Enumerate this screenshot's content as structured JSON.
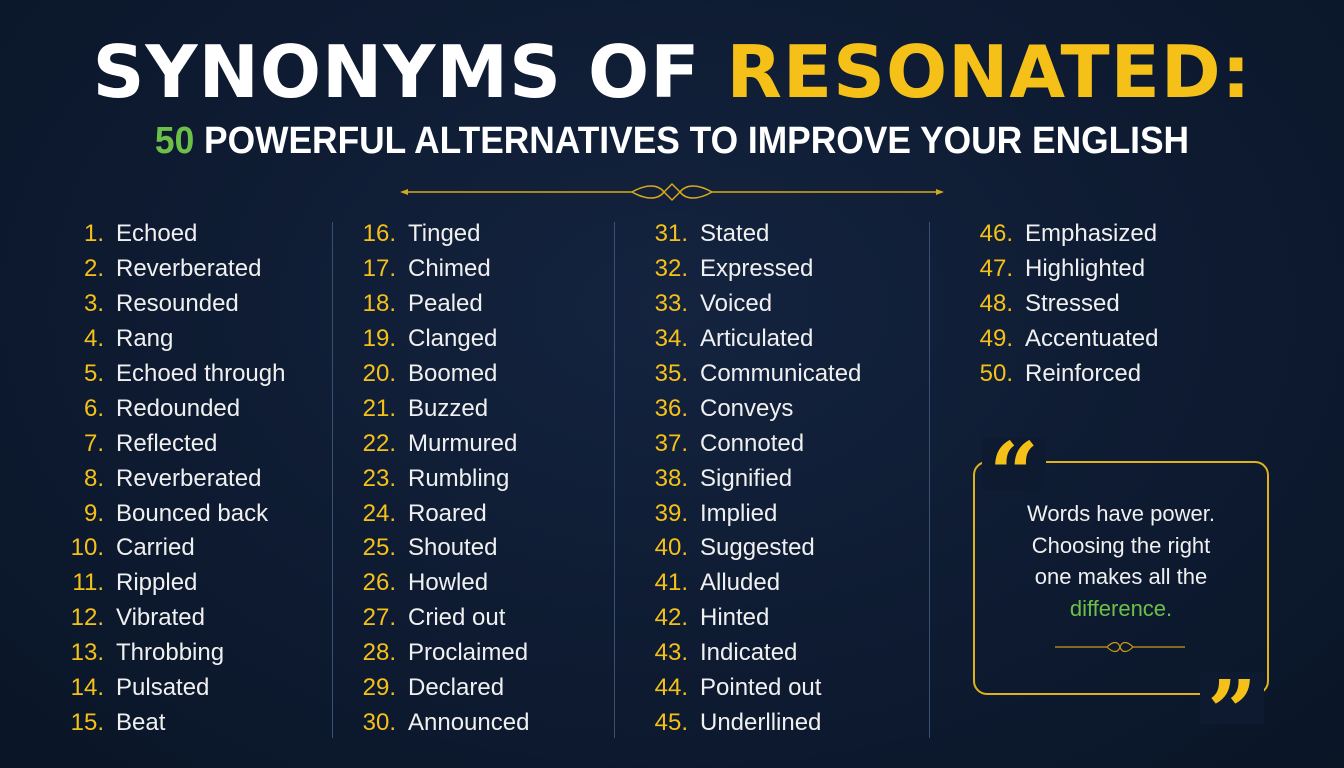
{
  "title": {
    "part1": "SYNONYMS OF ",
    "part2": "RESONATED:"
  },
  "subtitle": {
    "number": "50",
    "text": " POWERFUL ALTERNATIVES TO IMPROVE YOUR ENGLISH"
  },
  "columns": [
    [
      {
        "n": "1.",
        "w": "Echoed"
      },
      {
        "n": "2.",
        "w": "Reverberated"
      },
      {
        "n": "3.",
        "w": "Resounded"
      },
      {
        "n": "4.",
        "w": "Rang"
      },
      {
        "n": "5.",
        "w": "Echoed through"
      },
      {
        "n": "6.",
        "w": "Redounded"
      },
      {
        "n": "7.",
        "w": "Reflected"
      },
      {
        "n": "8.",
        "w": "Reverberated"
      },
      {
        "n": "9.",
        "w": "Bounced back"
      },
      {
        "n": "10.",
        "w": "Carried"
      },
      {
        "n": "11.",
        "w": "Rippled"
      },
      {
        "n": "12.",
        "w": "Vibrated"
      },
      {
        "n": "13.",
        "w": "Throbbing"
      },
      {
        "n": "14.",
        "w": "Pulsated"
      },
      {
        "n": "15.",
        "w": "Beat"
      }
    ],
    [
      {
        "n": "16.",
        "w": "Tinged"
      },
      {
        "n": "17.",
        "w": "Chimed"
      },
      {
        "n": "18.",
        "w": "Pealed"
      },
      {
        "n": "19.",
        "w": "Clanged"
      },
      {
        "n": "20.",
        "w": "Boomed"
      },
      {
        "n": "21.",
        "w": "Buzzed"
      },
      {
        "n": "22.",
        "w": "Murmured"
      },
      {
        "n": "23.",
        "w": "Rumbling"
      },
      {
        "n": "24.",
        "w": "Roared"
      },
      {
        "n": "25.",
        "w": "Shouted"
      },
      {
        "n": "26.",
        "w": "Howled"
      },
      {
        "n": "27.",
        "w": "Cried out"
      },
      {
        "n": "28.",
        "w": "Proclaimed"
      },
      {
        "n": "29.",
        "w": "Declared"
      },
      {
        "n": "30.",
        "w": "Announced"
      }
    ],
    [
      {
        "n": "31.",
        "w": "Stated"
      },
      {
        "n": "32.",
        "w": "Expressed"
      },
      {
        "n": "33.",
        "w": "Voiced"
      },
      {
        "n": "34.",
        "w": "Articulated"
      },
      {
        "n": "35.",
        "w": "Communicated"
      },
      {
        "n": "36.",
        "w": "Conveys"
      },
      {
        "n": "37.",
        "w": "Connoted"
      },
      {
        "n": "38.",
        "w": "Signified"
      },
      {
        "n": "39.",
        "w": "Implied"
      },
      {
        "n": "40.",
        "w": "Suggested"
      },
      {
        "n": "41.",
        "w": "Alluded"
      },
      {
        "n": "42.",
        "w": "Hinted"
      },
      {
        "n": "43.",
        "w": "Indicated"
      },
      {
        "n": "44.",
        "w": "Pointed out"
      },
      {
        "n": "45.",
        "w": "Underllined"
      }
    ],
    [
      {
        "n": "46.",
        "w": "Emphasized"
      },
      {
        "n": "47.",
        "w": "Highlighted"
      },
      {
        "n": "48.",
        "w": "Stressed"
      },
      {
        "n": "49.",
        "w": "Accentuated"
      },
      {
        "n": "50.",
        "w": "Reinforced"
      }
    ]
  ],
  "quote": {
    "open_mark": "“",
    "close_mark": "”",
    "line1": "Words have power.",
    "line2": "Choosing the right",
    "line3": "one makes all the",
    "highlight": "difference."
  },
  "colors": {
    "accent_yellow": "#f5c118",
    "accent_green": "#6cc04a",
    "background": "#0d1a30"
  }
}
